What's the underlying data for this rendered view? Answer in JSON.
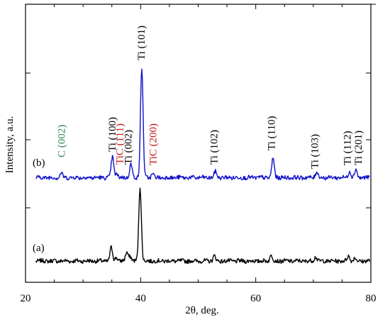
{
  "chart_data": {
    "type": "line",
    "xlabel": "2θ, deg.",
    "ylabel": "Intensity, a.u.",
    "xlim": [
      20,
      80
    ],
    "x_ticks": [
      20,
      40,
      60,
      80
    ],
    "x_tick_labels": [
      "20",
      "40",
      "60",
      "80"
    ],
    "y_ticks_visible": true,
    "y_tick_labels_visible": false,
    "grid": false,
    "legend": "none",
    "series": [
      {
        "name": "(a)",
        "color": "#000000",
        "baseline": 0.0,
        "peaks": [
          {
            "x": 34.9,
            "h": 0.18
          },
          {
            "x": 35.8,
            "h": 0.05
          },
          {
            "x": 37.6,
            "h": 0.12
          },
          {
            "x": 38.2,
            "h": 0.06
          },
          {
            "x": 39.9,
            "h": 1.0
          },
          {
            "x": 52.8,
            "h": 0.07
          },
          {
            "x": 62.7,
            "h": 0.08
          },
          {
            "x": 70.4,
            "h": 0.06
          },
          {
            "x": 76.1,
            "h": 0.07
          },
          {
            "x": 77.2,
            "h": 0.04
          }
        ]
      },
      {
        "name": "(b)",
        "color": "#1010cc",
        "baseline": 1.12,
        "peaks": [
          {
            "x": 26.2,
            "h": 0.06
          },
          {
            "x": 35.1,
            "h": 0.28
          },
          {
            "x": 35.8,
            "h": 0.05
          },
          {
            "x": 38.3,
            "h": 0.18
          },
          {
            "x": 40.2,
            "h": 1.48
          },
          {
            "x": 42.1,
            "h": 0.05
          },
          {
            "x": 53.0,
            "h": 0.08
          },
          {
            "x": 63.0,
            "h": 0.26
          },
          {
            "x": 70.6,
            "h": 0.08
          },
          {
            "x": 76.3,
            "h": 0.09
          },
          {
            "x": 77.4,
            "h": 0.11
          }
        ]
      }
    ],
    "annotations": [
      {
        "text": "C (002)",
        "x": 26.2,
        "color": "#2e8b57"
      },
      {
        "text": "Ti (100)",
        "x": 35.0,
        "color": "#000000"
      },
      {
        "text": "TiC (111)",
        "x": 36.3,
        "color": "#c0161c"
      },
      {
        "text": "Ti (002)",
        "x": 37.8,
        "color": "#000000"
      },
      {
        "text": "Ti (101)",
        "x": 40.1,
        "color": "#000000"
      },
      {
        "text": "TiC (200)",
        "x": 42.1,
        "color": "#c0161c"
      },
      {
        "text": "Ti (102)",
        "x": 52.7,
        "color": "#000000"
      },
      {
        "text": "Ti (110)",
        "x": 62.7,
        "color": "#000000"
      },
      {
        "text": "Ti (103)",
        "x": 70.2,
        "color": "#000000"
      },
      {
        "text": "Ti (112)",
        "x": 75.9,
        "color": "#000000"
      },
      {
        "text": "Ti (201)",
        "x": 77.8,
        "color": "#000000"
      }
    ]
  }
}
